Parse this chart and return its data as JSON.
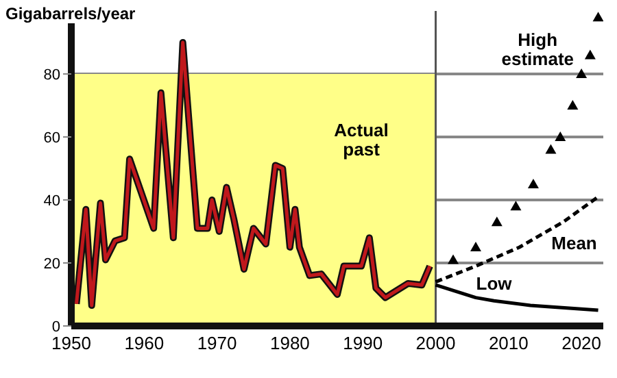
{
  "chart_data": {
    "type": "line",
    "ylabel": "Gigabarrels/year",
    "xlim": [
      1950,
      2023
    ],
    "xticks": [
      1950,
      1960,
      1970,
      1980,
      1990,
      2000,
      2010,
      2020
    ],
    "ylim": [
      0,
      100
    ],
    "yticks": [
      0,
      20,
      40,
      60,
      80
    ],
    "grid": "y",
    "legend": false,
    "bands": [
      {
        "axis": "x",
        "from": 1950,
        "to": 2000,
        "color": "#ffff88"
      }
    ],
    "ref_lines": [
      {
        "axis": "x",
        "value": 2000,
        "color": "#555555"
      }
    ],
    "series": [
      {
        "name": "Actual past",
        "color": "#c0181c",
        "line_style": "solid",
        "marker": "none",
        "x": [
          1950.7,
          1952,
          1952.8,
          1954,
          1954.7,
          1956,
          1957.3,
          1958,
          1961.3,
          1962.3,
          1964,
          1965.3,
          1967.3,
          1968.7,
          1969.3,
          1970.3,
          1971.3,
          1972.3,
          1973.7,
          1975,
          1976.7,
          1978,
          1979,
          1980,
          1980.7,
          1981.3,
          1982.7,
          1984.3,
          1986.5,
          1987.4,
          1989.8,
          1990.9,
          1991.8,
          1993.1,
          1996.2,
          1998.1,
          1999.2
        ],
        "values": [
          7,
          37,
          6.5,
          39,
          21,
          27,
          28,
          53,
          31,
          74,
          28,
          90,
          31,
          31,
          40,
          30,
          44,
          34,
          18,
          31,
          26,
          51,
          50,
          25,
          37,
          25,
          16,
          16.5,
          10,
          19,
          19,
          28,
          12,
          9,
          13.5,
          13,
          19
        ]
      },
      {
        "name": "High estimate",
        "type": "scatter",
        "color": "#000000",
        "marker": "triangle",
        "x": [
          2002.4,
          2005.5,
          2008.4,
          2011,
          2013.4,
          2015.8,
          2017.1,
          2018.8,
          2020,
          2021.2,
          2022.3
        ],
        "values": [
          21,
          25,
          33,
          38,
          45,
          56,
          60,
          70,
          80,
          86,
          98
        ]
      },
      {
        "name": "Mean",
        "color": "#000000",
        "line_style": "dashed",
        "marker": "none",
        "x": [
          2000,
          2005.5,
          2011.5,
          2017.5,
          2022.3
        ],
        "values": [
          14,
          19,
          25,
          33,
          41
        ]
      },
      {
        "name": "Low",
        "color": "#000000",
        "line_style": "solid",
        "marker": "none",
        "x": [
          2000,
          2005.5,
          2008,
          2013,
          2022.3
        ],
        "values": [
          13,
          9,
          8,
          6.5,
          5
        ]
      }
    ]
  }
}
